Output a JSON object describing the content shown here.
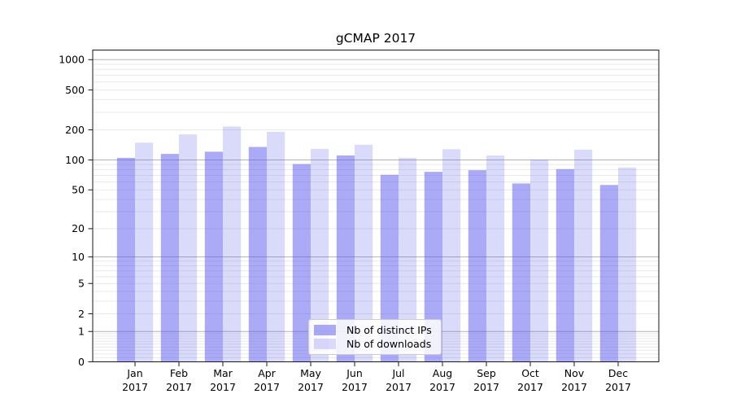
{
  "title": "gCMAP 2017",
  "chart_data": {
    "type": "bar",
    "title": "gCMAP 2017",
    "scale_y": "log1p",
    "categories": [
      "Jan",
      "Feb",
      "Mar",
      "Apr",
      "May",
      "Jun",
      "Jul",
      "Aug",
      "Sep",
      "Oct",
      "Nov",
      "Dec"
    ],
    "year_label": "2017",
    "series": [
      {
        "name": "Nb of distinct IPs",
        "values": [
          105,
          115,
          121,
          135,
          91,
          111,
          71,
          76,
          79,
          58,
          81,
          56
        ]
      },
      {
        "name": "Nb of downloads",
        "values": [
          149,
          180,
          216,
          191,
          129,
          142,
          105,
          128,
          111,
          101,
          127,
          84
        ]
      }
    ],
    "yticks": [
      0,
      1,
      2,
      5,
      10,
      20,
      50,
      100,
      200,
      500,
      1000
    ],
    "ytick_labels": [
      "0",
      "1",
      "2",
      "5",
      "10",
      "20",
      "50",
      "100",
      "200",
      "500",
      "1000"
    ],
    "ylim": [
      0,
      1220
    ],
    "grid": true,
    "legend_position": "lower-center"
  },
  "colors": {
    "bar_distinct_ips": "rgba(85,85,238,0.50)",
    "bar_downloads": "rgba(85,85,238,0.22)",
    "grid_major": "#b2b2b2",
    "grid_minor": "#e9e9e9",
    "axis": "#1a1a1a",
    "text": "#000000",
    "legend_border": "#cccccc",
    "legend_bg": "rgba(255,255,255,0.85)"
  }
}
